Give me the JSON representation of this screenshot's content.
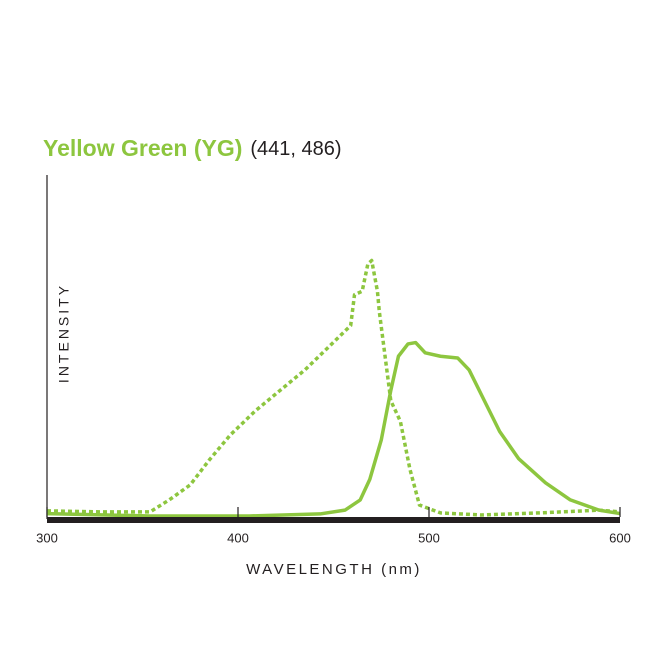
{
  "chart_data": {
    "type": "line",
    "title": "Yellow Green (YG)",
    "subtitle": "(441, 486)",
    "title_color": "#8dc63f",
    "x_label": "WAVELENGTH (nm)",
    "y_label": "INTENSITY",
    "xlim": [
      300,
      600
    ],
    "xticks": [
      300,
      400,
      500,
      600
    ],
    "ylim": [
      0,
      100
    ],
    "series": [
      {
        "color": "#8dc63f",
        "style": "dotted",
        "x": [
          300,
          328,
          354,
          364,
          375,
          385,
          396,
          409,
          422,
          435,
          448,
          459,
          461,
          465,
          468,
          470,
          473,
          474,
          477,
          480,
          485,
          490,
          495,
          506,
          527,
          558,
          589,
          600
        ],
        "values": [
          1.8,
          1.5,
          1.5,
          5,
          9.4,
          16.7,
          24,
          31,
          37,
          43,
          50,
          56,
          65,
          66,
          74,
          75,
          66,
          60,
          47,
          34,
          28,
          14,
          3.5,
          1.2,
          0.6,
          1.2,
          2,
          1.5
        ]
      },
      {
        "color": "#8dc63f",
        "style": "solid",
        "x": [
          300,
          354,
          406,
          443,
          456,
          464,
          469,
          475,
          480,
          484,
          489,
          493,
          498,
          506,
          515,
          521,
          529,
          537,
          547,
          561,
          574,
          589,
          600
        ],
        "values": [
          1,
          0.3,
          0.3,
          0.9,
          2,
          5,
          11,
          22.5,
          37,
          47,
          50.6,
          51,
          48,
          47,
          46.5,
          43,
          34,
          25,
          17,
          10,
          5,
          2,
          1
        ]
      }
    ]
  }
}
